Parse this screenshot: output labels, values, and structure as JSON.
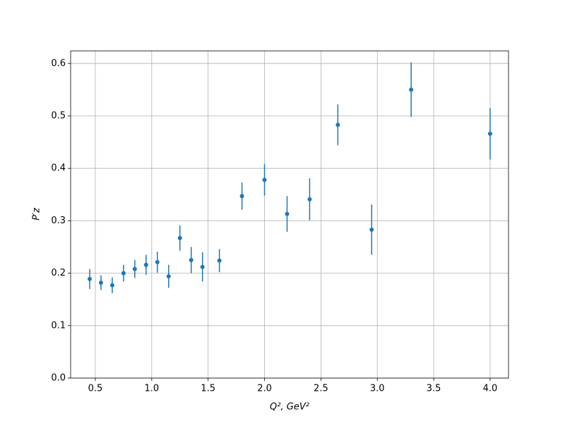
{
  "chart_data": {
    "type": "errorbar",
    "xlabel": "Q², GeV²",
    "ylabel": "P′z",
    "x": [
      0.45,
      0.55,
      0.65,
      0.75,
      0.85,
      0.95,
      1.05,
      1.15,
      1.25,
      1.35,
      1.45,
      1.6,
      1.8,
      2.0,
      2.2,
      2.4,
      2.65,
      2.95,
      3.3,
      4.0
    ],
    "values": [
      0.189,
      0.182,
      0.177,
      0.2,
      0.208,
      0.216,
      0.221,
      0.194,
      0.267,
      0.225,
      0.212,
      0.224,
      0.347,
      0.378,
      0.313,
      0.341,
      0.483,
      0.283,
      0.55,
      0.466
    ],
    "errors": [
      0.019,
      0.014,
      0.015,
      0.016,
      0.017,
      0.019,
      0.02,
      0.022,
      0.024,
      0.025,
      0.028,
      0.022,
      0.026,
      0.03,
      0.034,
      0.04,
      0.039,
      0.048,
      0.052,
      0.049
    ],
    "color": "#1f77b4",
    "xlim": [
      0.281,
      4.163
    ],
    "xticks": [
      0.5,
      {
        "value": 1,
        "label": "1.0"
      },
      1.5,
      {
        "value": 2,
        "label": "2.0"
      },
      2.5,
      {
        "value": 3,
        "label": "3.0"
      },
      3.5,
      {
        "value": 4,
        "label": "4.0"
      }
    ],
    "ylim": [
      0,
      0.624
    ],
    "yticks": [
      {
        "value": 0,
        "label": "0.0"
      },
      0.1,
      0.2,
      0.3,
      0.4,
      0.5,
      0.6
    ],
    "grid": true
  }
}
